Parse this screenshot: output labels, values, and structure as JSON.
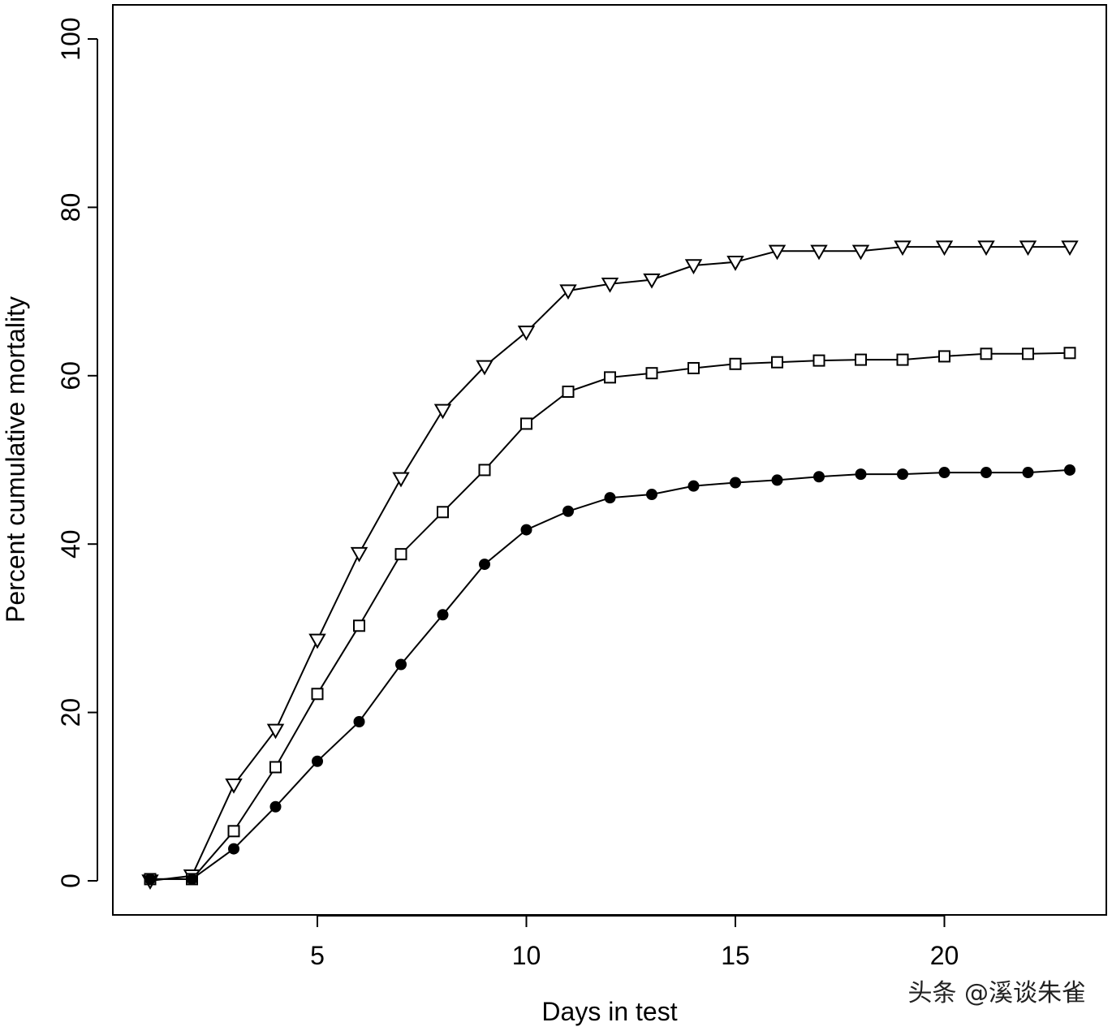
{
  "chart_data": {
    "type": "line",
    "title": "",
    "xlabel": "Days in test",
    "ylabel": "Percent cumulative mortality",
    "xlim": [
      0.5,
      23.5
    ],
    "ylim": [
      0,
      100
    ],
    "x_ticks": [
      5,
      10,
      15,
      20
    ],
    "y_ticks": [
      0,
      20,
      40,
      60,
      80,
      100
    ],
    "grid": false,
    "legend": "none",
    "x": [
      1,
      2,
      3,
      4,
      5,
      6,
      7,
      8,
      9,
      10,
      11,
      12,
      13,
      14,
      15,
      16,
      17,
      18,
      19,
      20,
      21,
      22,
      23
    ],
    "series": [
      {
        "marker": "triangle-down-open",
        "values": [
          0,
          0.6,
          11.4,
          17.9,
          28.6,
          38.9,
          47.8,
          55.9,
          61.1,
          65.2,
          70.1,
          70.9,
          71.4,
          73.1,
          73.5,
          74.8,
          74.8,
          74.8,
          75.3,
          75.3,
          75.3,
          75.3,
          75.3
        ]
      },
      {
        "marker": "square-open",
        "values": [
          0.2,
          0.2,
          5.9,
          13.5,
          22.2,
          30.3,
          38.8,
          43.8,
          48.8,
          54.3,
          58.1,
          59.8,
          60.3,
          60.9,
          61.4,
          61.6,
          61.8,
          61.9,
          61.9,
          62.3,
          62.6,
          62.6,
          62.7
        ]
      },
      {
        "marker": "circle-filled",
        "values": [
          0.2,
          0.2,
          3.8,
          8.8,
          14.2,
          18.9,
          25.7,
          31.6,
          37.6,
          41.7,
          43.9,
          45.5,
          45.9,
          46.9,
          47.3,
          47.6,
          48.0,
          48.3,
          48.3,
          48.5,
          48.5,
          48.5,
          48.8
        ]
      }
    ]
  },
  "watermark": "头条 @溪谈朱雀"
}
